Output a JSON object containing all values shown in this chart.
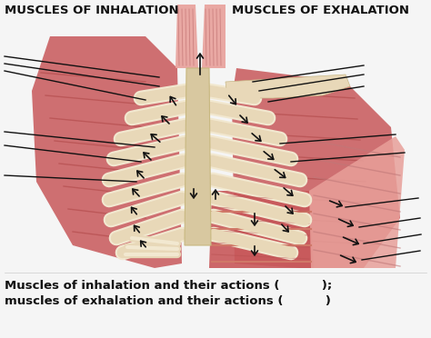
{
  "title_left": "MUSCLES OF INHALATION",
  "title_right": "MUSCLES OF EXHALATION",
  "title_fontsize": 9.5,
  "title_fontweight": "bold",
  "title_color": "#111111",
  "caption_line1": "Muscles of inhalation and their actions (          );",
  "caption_line2": "muscles of exhalation and their actions (          )",
  "caption_fontsize": 9.5,
  "caption_fontweight": "bold",
  "background_color": "#f5f5f5",
  "fig_width": 4.74,
  "fig_height": 3.72,
  "dpi": 100,
  "muscle_red": "#c8585a",
  "muscle_mid": "#d4706a",
  "muscle_light": "#e8a09a",
  "bone_cream": "#e8d8b8",
  "bone_light": "#f2e8d0",
  "sternum_color": "#d8c8a0",
  "arrow_color": "#111111",
  "line_color": "#111111"
}
